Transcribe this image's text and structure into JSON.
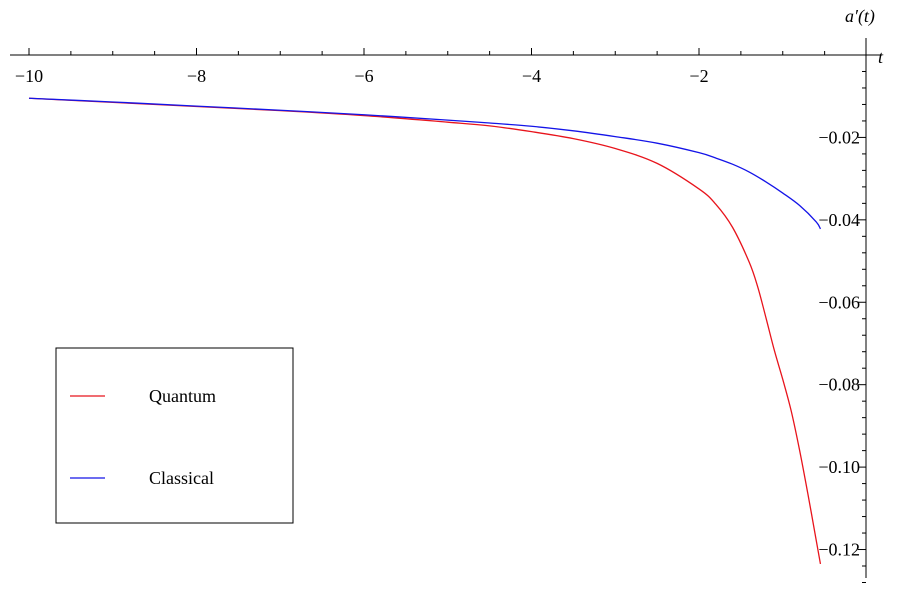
{
  "chart_data": {
    "type": "line",
    "xlabel": "t",
    "ylabel": "a′(t)",
    "xlim": [
      -10,
      -0.5
    ],
    "ylim": [
      -0.125,
      0.0
    ],
    "xticks": [
      {
        "value": -10,
        "label": "−10"
      },
      {
        "value": -8,
        "label": "−8"
      },
      {
        "value": -6,
        "label": "−6"
      },
      {
        "value": -4,
        "label": "−4"
      },
      {
        "value": -2,
        "label": "−2"
      }
    ],
    "yticks": [
      {
        "value": -0.02,
        "label": "−0.02"
      },
      {
        "value": -0.04,
        "label": "−0.04"
      },
      {
        "value": -0.06,
        "label": "−0.06"
      },
      {
        "value": -0.08,
        "label": "−0.08"
      },
      {
        "value": -0.1,
        "label": "−0.10"
      },
      {
        "value": -0.12,
        "label": "−0.12"
      }
    ],
    "legend_position": "bottom-left",
    "series": [
      {
        "name": "Quantum",
        "color": "#e8141c",
        "x": [
          -10,
          -9,
          -8,
          -7,
          -6,
          -5,
          -4.5,
          -4,
          -3.5,
          -3,
          -2.5,
          -2.0,
          -1.8,
          -1.6,
          -1.4,
          -1.3,
          -1.2,
          -1.1,
          -1.0,
          -0.9,
          -0.8,
          -0.7,
          -0.6,
          -0.55
        ],
        "y": [
          -0.0105,
          -0.0115,
          -0.0125,
          -0.0135,
          -0.0147,
          -0.0163,
          -0.0172,
          -0.0186,
          -0.0203,
          -0.0227,
          -0.0263,
          -0.0325,
          -0.0362,
          -0.0418,
          -0.0503,
          -0.0562,
          -0.0638,
          -0.0717,
          -0.0787,
          -0.0863,
          -0.0958,
          -0.1065,
          -0.1178,
          -0.1235
        ]
      },
      {
        "name": "Classical",
        "color": "#1414e8",
        "x": [
          -10,
          -9,
          -8,
          -7,
          -6,
          -5,
          -4.5,
          -4,
          -3.5,
          -3,
          -2.5,
          -2.0,
          -1.8,
          -1.6,
          -1.4,
          -1.2,
          -1.0,
          -0.8,
          -0.6,
          -0.55
        ],
        "y": [
          -0.0105,
          -0.0114,
          -0.0124,
          -0.0134,
          -0.0145,
          -0.0158,
          -0.0165,
          -0.0173,
          -0.0184,
          -0.0198,
          -0.0214,
          -0.0237,
          -0.025,
          -0.0265,
          -0.0284,
          -0.0308,
          -0.0335,
          -0.0365,
          -0.0405,
          -0.0422
        ]
      }
    ]
  }
}
